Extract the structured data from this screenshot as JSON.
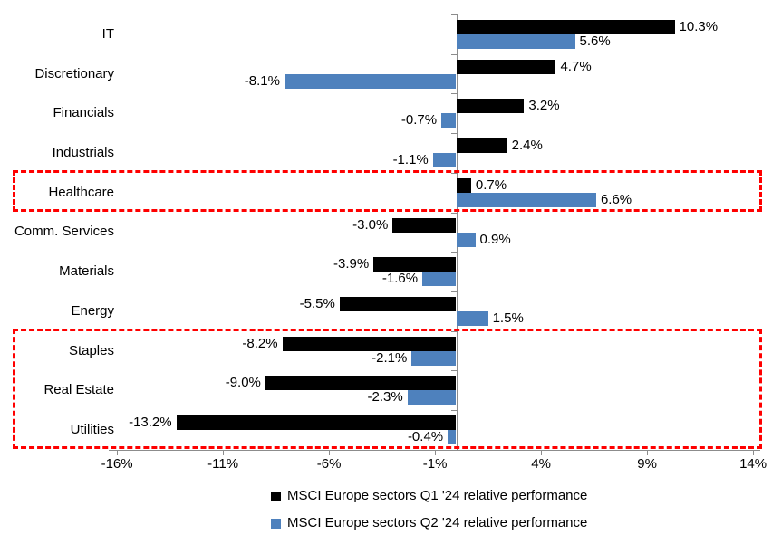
{
  "chart_data": {
    "type": "bar",
    "orientation": "horizontal",
    "categories": [
      "IT",
      "Discretionary",
      "Financials",
      "Industrials",
      "Healthcare",
      "Comm. Services",
      "Materials",
      "Energy",
      "Staples",
      "Real Estate",
      "Utilities"
    ],
    "series": [
      {
        "name": "MSCI Europe sectors Q1 '24 relative performance",
        "key": "q1",
        "color": "#000000",
        "values": [
          10.3,
          4.7,
          3.2,
          2.4,
          0.7,
          -3.0,
          -3.9,
          -5.5,
          -8.2,
          -9.0,
          -13.2
        ],
        "labels": [
          "10.3%",
          "4.7%",
          "3.2%",
          "2.4%",
          "0.7%",
          "-3.0%",
          "-3.9%",
          "-5.5%",
          "-8.2%",
          "-9.0%",
          "-13.2%"
        ]
      },
      {
        "name": "MSCI Europe sectors Q2 '24 relative performance",
        "key": "q2",
        "color": "#4e81bd",
        "values": [
          5.6,
          -8.1,
          -0.7,
          -1.1,
          6.6,
          0.9,
          -1.6,
          1.5,
          -2.1,
          -2.3,
          -0.4
        ],
        "labels": [
          "5.6%",
          "-8.1%",
          "-0.7%",
          "-1.1%",
          "6.6%",
          "0.9%",
          "-1.6%",
          "1.5%",
          "-2.1%",
          "-2.3%",
          "-0.4%"
        ]
      }
    ],
    "x_ticks": [
      {
        "value": -16,
        "label": "-16%"
      },
      {
        "value": -11,
        "label": "-11%"
      },
      {
        "value": -6,
        "label": "-6%"
      },
      {
        "value": -1,
        "label": "-1%"
      },
      {
        "value": 4,
        "label": "4%"
      },
      {
        "value": 9,
        "label": "9%"
      },
      {
        "value": 14,
        "label": "14%"
      }
    ],
    "xlim": [
      -16.5,
      14.3
    ],
    "grid": false,
    "legend_position": "bottom",
    "highlights": [
      {
        "name": "healthcare-highlight-box",
        "categories": [
          "Healthcare"
        ],
        "start_row": 4,
        "end_row": 4
      },
      {
        "name": "defensive-sectors-highlight-box",
        "categories": [
          "Staples",
          "Real Estate",
          "Utilities"
        ],
        "start_row": 8,
        "end_row": 10
      }
    ],
    "highlight_color": "#ff0000",
    "axis_color": "#8c8c8c"
  },
  "legend": {
    "items": [
      {
        "label": "MSCI Europe sectors Q1 '24 relative performance",
        "color": "#000000"
      },
      {
        "label": "MSCI Europe sectors Q2 '24 relative performance",
        "color": "#4e81bd"
      }
    ]
  }
}
